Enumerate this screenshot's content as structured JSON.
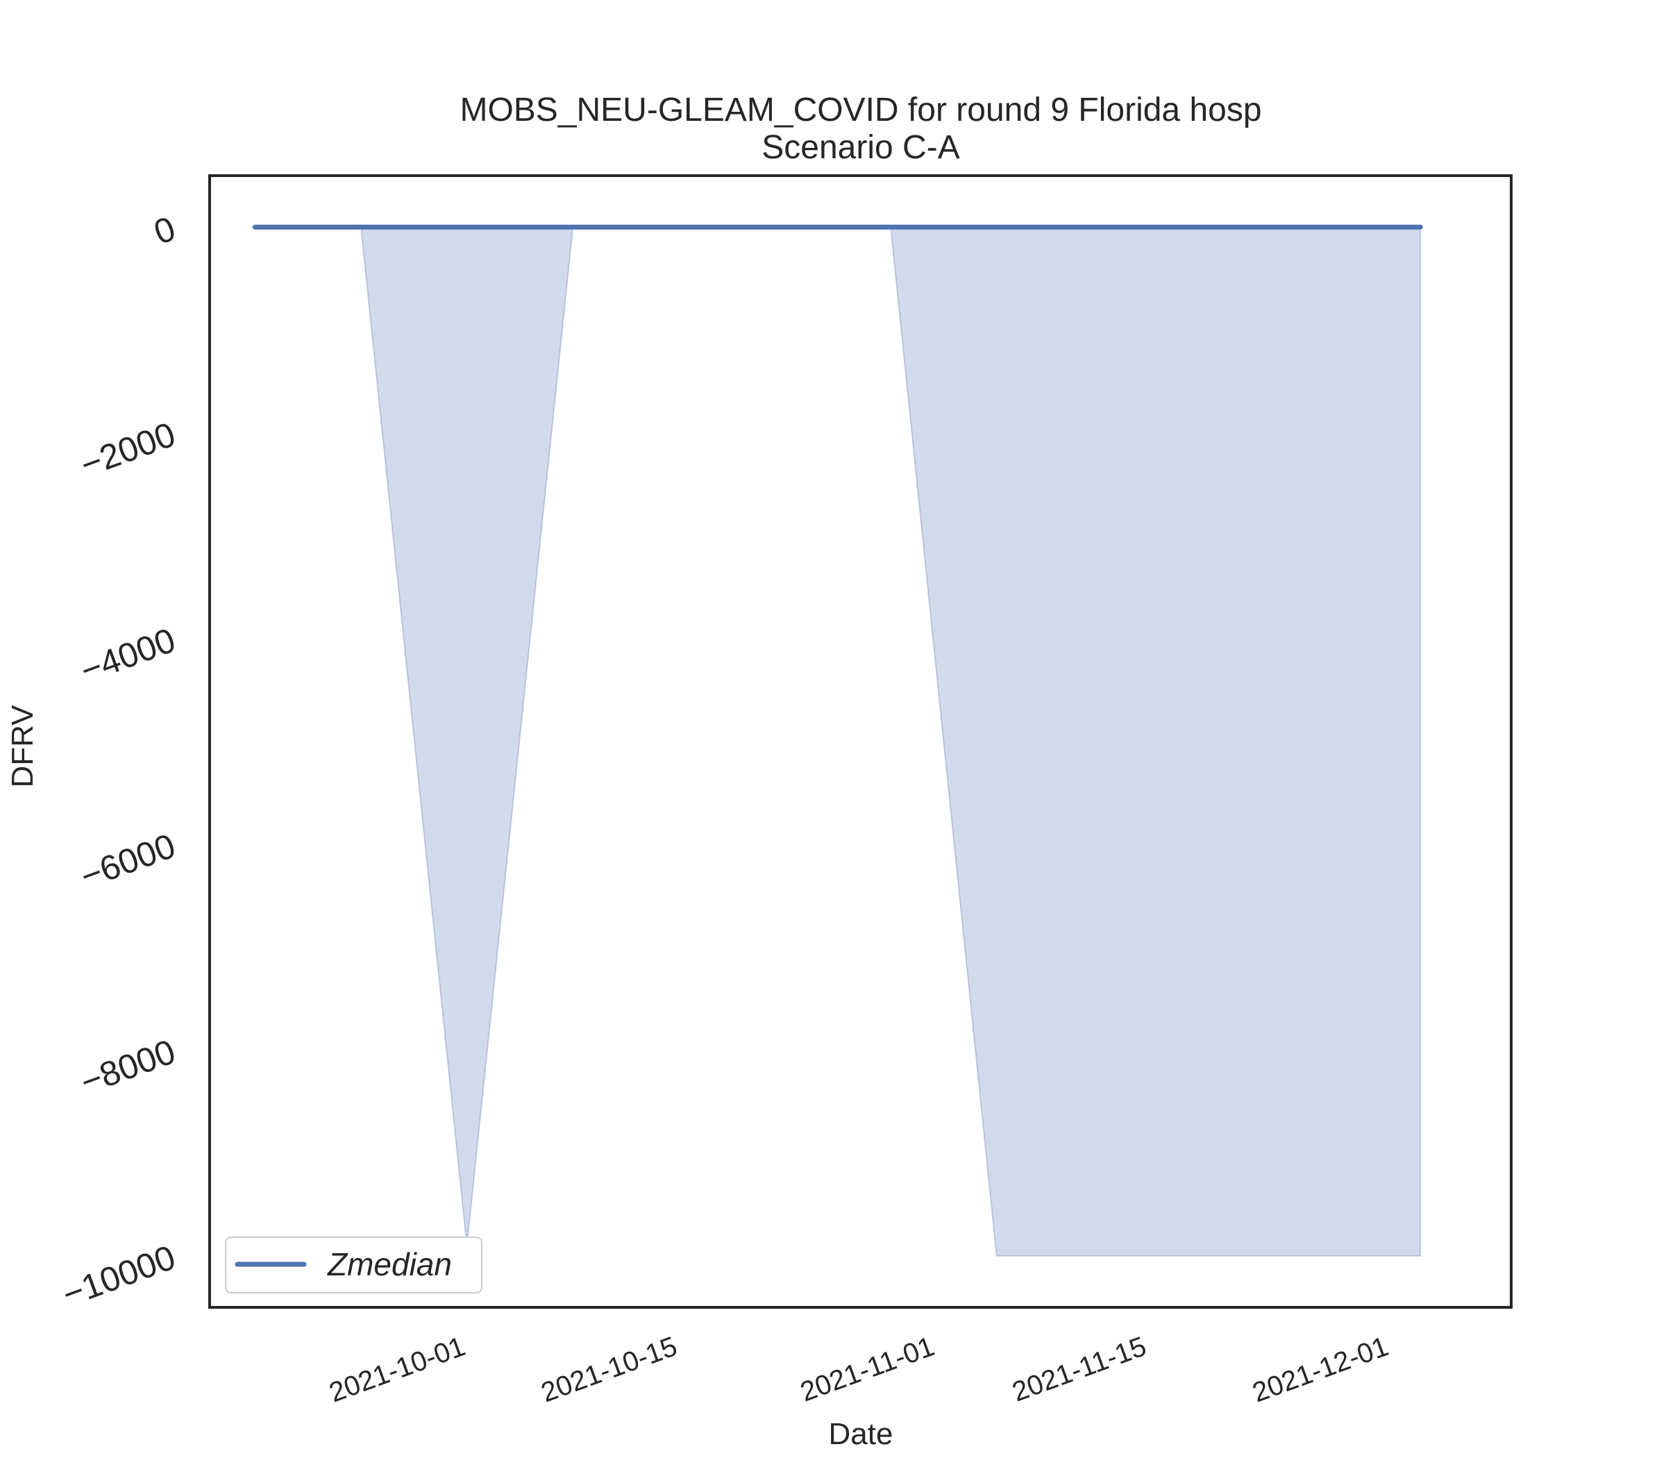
{
  "chart_data": {
    "type": "area",
    "title": "MOBS_NEU-GLEAM_COVID for round 9 Florida hosp",
    "subtitle": "Scenario C-A",
    "xlabel": "Date",
    "ylabel": "DFRV",
    "x_ticks": [
      "2021-10-01",
      "2021-10-15",
      "2021-11-01",
      "2021-11-15",
      "2021-12-01"
    ],
    "y_ticks": [
      0,
      -2000,
      -4000,
      -6000,
      -8000,
      -10000
    ],
    "y_tick_labels": [
      "0",
      "−2000",
      "−4000",
      "−6000",
      "−8000",
      "−10000"
    ],
    "xlim": [
      "2021-09-15",
      "2021-12-10"
    ],
    "ylim": [
      -10500,
      500
    ],
    "grid": false,
    "legend_position": "lower-left",
    "series": [
      {
        "name": "Zmedian",
        "type": "line",
        "color": "#4c72b0",
        "x": [
          "2021-09-18",
          "2021-10-02",
          "2021-10-09",
          "2021-10-16",
          "2021-10-23",
          "2021-10-30",
          "2021-11-06",
          "2021-11-13",
          "2021-11-20",
          "2021-11-27",
          "2021-12-04"
        ],
        "y": [
          0,
          0,
          0,
          0,
          0,
          0,
          0,
          0,
          0,
          0,
          0
        ]
      }
    ],
    "bands": [
      {
        "color": "#4c72b0",
        "opacity": 0.26,
        "x": [
          "2021-09-18",
          "2021-09-25",
          "2021-10-02",
          "2021-10-09",
          "2021-10-16",
          "2021-10-23",
          "2021-10-30",
          "2021-11-06",
          "2021-11-13",
          "2021-11-20",
          "2021-11-27",
          "2021-12-04"
        ],
        "lower": [
          0,
          0,
          -9900,
          0,
          0,
          0,
          0,
          -10000,
          -10000,
          -10000,
          -10000,
          -10000
        ],
        "upper": [
          0,
          0,
          0,
          0,
          0,
          0,
          0,
          0,
          0,
          0,
          0,
          0
        ]
      }
    ]
  }
}
